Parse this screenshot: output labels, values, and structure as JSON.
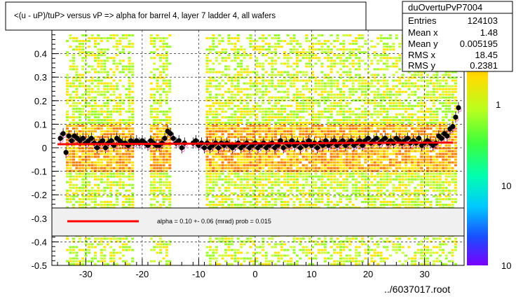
{
  "chart_data": {
    "type": "heatmap",
    "title": "<(u - uP)/tuP> versus   vP => alpha for barrel 4, layer 7 ladder 4, all wafers",
    "xlabel": "",
    "ylabel": "",
    "xlim": [
      -36,
      37
    ],
    "ylim": [
      -0.5,
      0.5
    ],
    "x_ticks": [
      -30,
      -20,
      -10,
      0,
      10,
      20,
      30
    ],
    "y_ticks": [
      -0.5,
      -0.4,
      -0.3,
      -0.2,
      -0.1,
      0,
      0.1,
      0.2,
      0.3,
      0.4
    ],
    "y_tick_labels": [
      "-0.5",
      "-0.4",
      "-0.3",
      "-0.2",
      "-0.1",
      "0",
      "0.1",
      "0.2",
      "0.3",
      "0.4"
    ],
    "grid": true,
    "colorbar": {
      "scale": "log",
      "labels": [
        "1",
        "10",
        "10"
      ]
    },
    "stats": {
      "name": "duOvertuPvP7004",
      "rows": [
        {
          "label": "Entries",
          "value": "124103"
        },
        {
          "label": "Mean x",
          "value": "1.48"
        },
        {
          "label": "Mean y",
          "value": "0.005195"
        },
        {
          "label": "RMS x",
          "value": "18.45"
        },
        {
          "label": "RMS y",
          "value": "0.2381"
        }
      ]
    },
    "fit": {
      "legend": "alpha =     0.10 +-  0.06 (mrad) prob = 0.015",
      "line": [
        [
          -35,
          0.015
        ],
        [
          35,
          0.022
        ]
      ],
      "color": "#ff0000"
    },
    "profile_points": [
      [
        -34.5,
        0.04
      ],
      [
        -34,
        0.06
      ],
      [
        -33.5,
        -0.02
      ],
      [
        -33,
        0.05
      ],
      [
        -32.5,
        0.03
      ],
      [
        -32,
        0.05
      ],
      [
        -31.5,
        0.04
      ],
      [
        -31,
        0.03
      ],
      [
        -30.5,
        0.04
      ],
      [
        -30,
        0.02
      ],
      [
        -29.5,
        0.03
      ],
      [
        -29,
        0.04
      ],
      [
        -28.5,
        0.02
      ],
      [
        -28,
        0.0
      ],
      [
        -27.5,
        0.02
      ],
      [
        -27,
        0.03
      ],
      [
        -26.5,
        0.0
      ],
      [
        -26,
        0.02
      ],
      [
        -25.5,
        0.03
      ],
      [
        -25,
        0.01
      ],
      [
        -24.5,
        0.04
      ],
      [
        -24,
        0.03
      ],
      [
        -23.5,
        0.02
      ],
      [
        -23,
        0.02
      ],
      [
        -22.5,
        0.01
      ],
      [
        -22,
        0.03
      ],
      [
        -21.5,
        0.02
      ],
      [
        -21,
        0.03
      ],
      [
        -20.5,
        0.02
      ],
      [
        -20,
        0.03
      ],
      [
        -19.5,
        0.02
      ],
      [
        -19,
        0.01
      ],
      [
        -18.5,
        0.03
      ],
      [
        -18,
        0.02
      ],
      [
        -17.5,
        0.01
      ],
      [
        -17,
        0.01
      ],
      [
        -16.5,
        0.02
      ],
      [
        -16,
        0.04
      ],
      [
        -15.5,
        0.07
      ],
      [
        -15,
        0.06
      ],
      [
        -14.5,
        0.04
      ],
      [
        -14,
        0.02
      ],
      [
        -13.5,
        0.03
      ],
      [
        -13,
        0.0
      ],
      [
        -12.5,
        0.02
      ],
      [
        -11,
        0.02
      ],
      [
        -10.5,
        0.03
      ],
      [
        -10,
        0.01
      ],
      [
        -9.5,
        0.02
      ],
      [
        -9,
        0.0
      ],
      [
        -8.5,
        0.02
      ],
      [
        -8,
        0.0
      ],
      [
        -7.5,
        0.01
      ],
      [
        -7,
        0.02
      ],
      [
        -6.5,
        0.0
      ],
      [
        -6,
        0.02
      ],
      [
        -5.5,
        0.01
      ],
      [
        -5,
        0.02
      ],
      [
        -4.5,
        0.01
      ],
      [
        -4,
        0.0
      ],
      [
        -3.5,
        0.01
      ],
      [
        -3,
        0.02
      ],
      [
        -2.5,
        0.0
      ],
      [
        -2,
        0.01
      ],
      [
        -1.5,
        0.02
      ],
      [
        -1,
        0.0
      ],
      [
        -0.5,
        0.01
      ],
      [
        0,
        0.02
      ],
      [
        0.5,
        0.0
      ],
      [
        1,
        0.01
      ],
      [
        1.5,
        0.02
      ],
      [
        2,
        0.0
      ],
      [
        2.5,
        0.01
      ],
      [
        3,
        0.02
      ],
      [
        3.5,
        0.0
      ],
      [
        4,
        0.01
      ],
      [
        4.5,
        0.03
      ],
      [
        5,
        0.0
      ],
      [
        5.5,
        0.02
      ],
      [
        6,
        0.01
      ],
      [
        6.5,
        0.03
      ],
      [
        7,
        0.01
      ],
      [
        7.5,
        0.02
      ],
      [
        8,
        0.0
      ],
      [
        8.5,
        0.02
      ],
      [
        9,
        0.01
      ],
      [
        9.5,
        0.03
      ],
      [
        10,
        0.01
      ],
      [
        10.5,
        0.02
      ],
      [
        11,
        0.0
      ],
      [
        11.5,
        0.02
      ],
      [
        12,
        0.01
      ],
      [
        12.5,
        0.03
      ],
      [
        13,
        0.01
      ],
      [
        13.5,
        0.02
      ],
      [
        14,
        0.03
      ],
      [
        14.5,
        0.01
      ],
      [
        15,
        0.02
      ],
      [
        15.5,
        0.03
      ],
      [
        16,
        0.01
      ],
      [
        16.5,
        0.02
      ],
      [
        17,
        0.03
      ],
      [
        17.5,
        0.01
      ],
      [
        18,
        0.02
      ],
      [
        18.5,
        0.03
      ],
      [
        19,
        0.01
      ],
      [
        19.5,
        0.03
      ],
      [
        20,
        0.04
      ],
      [
        20.5,
        0.02
      ],
      [
        21,
        0.03
      ],
      [
        21.5,
        0.04
      ],
      [
        22,
        0.02
      ],
      [
        22.5,
        0.03
      ],
      [
        23,
        0.04
      ],
      [
        23.5,
        0.02
      ],
      [
        24,
        0.03
      ],
      [
        24.5,
        0.02
      ],
      [
        25,
        0.04
      ],
      [
        25.5,
        0.03
      ],
      [
        26,
        0.02
      ],
      [
        26.5,
        0.03
      ],
      [
        27,
        0.04
      ],
      [
        27.5,
        0.02
      ],
      [
        28,
        0.03
      ],
      [
        28.5,
        0.02
      ],
      [
        29,
        0.04
      ],
      [
        29.5,
        0.01
      ],
      [
        30,
        0.02
      ],
      [
        30.5,
        0.03
      ],
      [
        31,
        0.02
      ],
      [
        31.5,
        0.01
      ],
      [
        32,
        0.02
      ],
      [
        32.5,
        0.05
      ],
      [
        33,
        0.04
      ],
      [
        33.5,
        0.06
      ],
      [
        34,
        0.05
      ],
      [
        34.5,
        0.08
      ],
      [
        35,
        0.09
      ],
      [
        35.5,
        0.13
      ],
      [
        36,
        0.17
      ]
    ],
    "footer": "../6037017.root"
  }
}
